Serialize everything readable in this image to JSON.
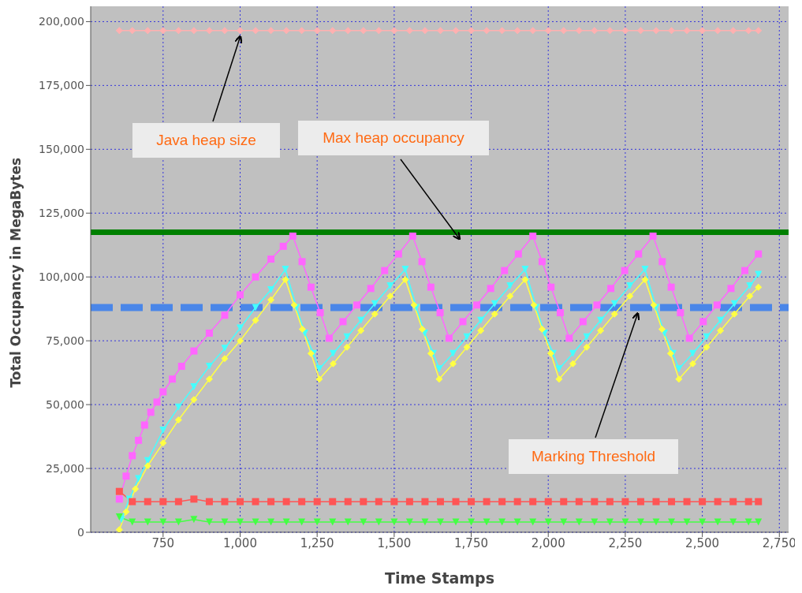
{
  "chart_data": {
    "type": "line",
    "xlabel": "Time Stamps",
    "ylabel": "Total Occupancy in MegaBytes",
    "xlim": [
      515,
      2780
    ],
    "xticks": [
      {
        "value": 750,
        "label": "750"
      },
      {
        "value": 1000,
        "label": "1,000"
      },
      {
        "value": 1250,
        "label": "1,250"
      },
      {
        "value": 1500,
        "label": "1,500"
      },
      {
        "value": 1750,
        "label": "1,750"
      },
      {
        "value": 2000,
        "label": "2,000"
      },
      {
        "value": 2250,
        "label": "2,250"
      },
      {
        "value": 2500,
        "label": "2,500"
      },
      {
        "value": 2750,
        "label": "2,750"
      }
    ],
    "ylim": [
      0,
      206000
    ],
    "yticks": [
      0,
      {
        "value": 25000,
        "label": "25,000"
      },
      {
        "value": 50000,
        "label": "50,000"
      },
      {
        "value": 75000,
        "label": "75,000"
      },
      {
        "value": 100000,
        "label": "100,000"
      },
      {
        "value": 125000,
        "label": "125,000"
      },
      {
        "value": 150000,
        "label": "150,000"
      },
      {
        "value": 175000,
        "label": "175,000"
      },
      {
        "value": 200000,
        "label": "200,000"
      }
    ],
    "grid": true,
    "series": [
      {
        "color": "#ffb0b0",
        "marker": "diamond",
        "x": [
          608,
          650,
          700,
          750,
          800,
          850,
          900,
          950,
          1000,
          1050,
          1100,
          1150,
          1200,
          1250,
          1300,
          1350,
          1400,
          1450,
          1500,
          1550,
          1600,
          1650,
          1700,
          1750,
          1800,
          1850,
          1900,
          1950,
          2000,
          2050,
          2100,
          2150,
          2200,
          2250,
          2300,
          2350,
          2400,
          2450,
          2500,
          2550,
          2600,
          2650,
          2682
        ],
        "values": [
          196500,
          196500,
          196500,
          196500,
          196500,
          196500,
          196500,
          196500,
          196500,
          196500,
          196500,
          196500,
          196500,
          196500,
          196500,
          196500,
          196500,
          196500,
          196500,
          196500,
          196500,
          196500,
          196500,
          196500,
          196500,
          196500,
          196500,
          196500,
          196500,
          196500,
          196500,
          196500,
          196500,
          196500,
          196500,
          196500,
          196500,
          196500,
          196500,
          196500,
          196500,
          196500,
          196500
        ]
      },
      {
        "color": "#ff66ff",
        "marker": "square",
        "x": [
          608,
          630,
          650,
          670,
          690,
          710,
          730,
          750,
          780,
          810,
          850,
          900,
          950,
          1000,
          1050,
          1100,
          1140,
          1171,
          1201,
          1230,
          1260,
          1289,
          1334,
          1379,
          1424,
          1469,
          1514,
          1560,
          1590,
          1619,
          1649,
          1678,
          1723,
          1768,
          1813,
          1858,
          1903,
          1950,
          1980,
          2009,
          2039,
          2068,
          2113,
          2158,
          2203,
          2248,
          2293,
          2340,
          2370,
          2399,
          2429,
          2458,
          2503,
          2548,
          2593,
          2638,
          2682
        ],
        "values": [
          13000,
          22000,
          30000,
          36000,
          42000,
          47000,
          51000,
          55000,
          60000,
          65000,
          71000,
          78000,
          85000,
          93000,
          100000,
          107000,
          112000,
          116000,
          106000,
          96000,
          86000,
          76000,
          82500,
          89000,
          95500,
          102500,
          109000,
          116000,
          106000,
          96000,
          86000,
          76000,
          82500,
          89000,
          95500,
          102500,
          109000,
          116000,
          106000,
          96000,
          86000,
          76000,
          82500,
          89000,
          95500,
          102500,
          109000,
          116000,
          106000,
          96000,
          86000,
          76000,
          82500,
          89000,
          95500,
          102500,
          109000
        ]
      },
      {
        "color": "#44ffff",
        "marker": "triangle",
        "x": [
          615,
          640,
          670,
          700,
          750,
          800,
          850,
          900,
          950,
          1000,
          1050,
          1100,
          1147,
          1183,
          1210,
          1238,
          1257,
          1302,
          1347,
          1392,
          1437,
          1487,
          1536,
          1572,
          1599,
          1627,
          1646,
          1691,
          1736,
          1781,
          1826,
          1876,
          1925,
          1961,
          1988,
          2016,
          2035,
          2080,
          2125,
          2170,
          2215,
          2265,
          2314,
          2350,
          2377,
          2405,
          2424,
          2469,
          2514,
          2559,
          2604,
          2654,
          2682
        ],
        "values": [
          5000,
          13000,
          21000,
          28000,
          40000,
          49000,
          57000,
          65000,
          72000,
          80000,
          88000,
          95000,
          103000,
          88000,
          78000,
          70000,
          64000,
          70000,
          76500,
          83000,
          89500,
          96500,
          103000,
          88000,
          78000,
          70000,
          64000,
          70000,
          76500,
          83000,
          89500,
          96500,
          103000,
          88000,
          78000,
          70000,
          64000,
          70000,
          76500,
          83000,
          89500,
          96500,
          103000,
          88000,
          78000,
          70000,
          64000,
          70000,
          76500,
          83000,
          89500,
          96500,
          101000
        ]
      },
      {
        "color": "#ffff44",
        "marker": "diamond",
        "x": [
          608,
          630,
          660,
          700,
          750,
          800,
          850,
          900,
          950,
          1000,
          1050,
          1100,
          1147,
          1175,
          1202,
          1230,
          1257,
          1302,
          1347,
          1392,
          1437,
          1487,
          1536,
          1564,
          1591,
          1619,
          1646,
          1691,
          1736,
          1781,
          1826,
          1876,
          1925,
          1953,
          1980,
          2008,
          2035,
          2080,
          2125,
          2170,
          2215,
          2265,
          2314,
          2342,
          2369,
          2397,
          2424,
          2469,
          2514,
          2559,
          2604,
          2654,
          2682
        ],
        "values": [
          1000,
          8000,
          17000,
          26000,
          35000,
          44000,
          52000,
          60000,
          68000,
          75000,
          83000,
          91000,
          99000,
          89000,
          79500,
          70000,
          60000,
          66000,
          72500,
          79000,
          85500,
          92500,
          99000,
          89000,
          79500,
          70000,
          60000,
          66000,
          72500,
          79000,
          85500,
          92500,
          99000,
          89000,
          79500,
          70000,
          60000,
          66000,
          72500,
          79000,
          85500,
          92500,
          99000,
          89000,
          79500,
          70000,
          60000,
          66000,
          72500,
          79000,
          85500,
          92500,
          96000
        ]
      },
      {
        "color": "#ff5555",
        "marker": "square",
        "x": [
          608,
          650,
          700,
          750,
          800,
          850,
          900,
          950,
          1000,
          1050,
          1100,
          1150,
          1200,
          1250,
          1300,
          1350,
          1400,
          1450,
          1500,
          1550,
          1600,
          1650,
          1700,
          1750,
          1800,
          1850,
          1900,
          1950,
          2000,
          2050,
          2100,
          2150,
          2200,
          2250,
          2300,
          2350,
          2400,
          2450,
          2500,
          2550,
          2600,
          2650,
          2682
        ],
        "values": [
          16000,
          12000,
          12000,
          12000,
          12000,
          13000,
          12000,
          12000,
          12000,
          12000,
          12000,
          12000,
          12000,
          12000,
          12000,
          12000,
          12000,
          12000,
          12000,
          12000,
          12000,
          12000,
          12000,
          12000,
          12000,
          12000,
          12000,
          12000,
          12000,
          12000,
          12000,
          12000,
          12000,
          12000,
          12000,
          12000,
          12000,
          12000,
          12000,
          12000,
          12000,
          12000,
          12000
        ]
      },
      {
        "color": "#44ff44",
        "marker": "triangle",
        "x": [
          608,
          650,
          700,
          750,
          800,
          850,
          900,
          950,
          1000,
          1050,
          1100,
          1150,
          1200,
          1250,
          1300,
          1350,
          1400,
          1450,
          1500,
          1550,
          1600,
          1650,
          1700,
          1750,
          1800,
          1850,
          1900,
          1950,
          2000,
          2050,
          2100,
          2150,
          2200,
          2250,
          2300,
          2350,
          2400,
          2450,
          2500,
          2550,
          2600,
          2650,
          2682
        ],
        "values": [
          6000,
          4000,
          4000,
          4000,
          4000,
          5000,
          4000,
          4000,
          4000,
          4000,
          4000,
          4000,
          4000,
          4000,
          4000,
          4000,
          4000,
          4000,
          4000,
          4000,
          4000,
          4000,
          4000,
          4000,
          4000,
          4000,
          4000,
          4000,
          4000,
          4000,
          4000,
          4000,
          4000,
          4000,
          4000,
          4000,
          4000,
          4000,
          4000,
          4000,
          4000,
          4000,
          4000
        ]
      }
    ],
    "ref_lines": [
      {
        "axis": "y",
        "value": 117500,
        "color": "#008000",
        "line_style": "solid"
      },
      {
        "axis": "y",
        "value": 88000,
        "color": "#4a86e8",
        "line_style": "dashed"
      }
    ],
    "annotations": [
      {
        "text": "Java heap size",
        "x": 1000,
        "y": 196500
      },
      {
        "text": "Max heap occupancy",
        "x": 1711,
        "y": 117500
      },
      {
        "text": "Marking Threshold",
        "x": 2290,
        "y": 88000
      }
    ]
  }
}
